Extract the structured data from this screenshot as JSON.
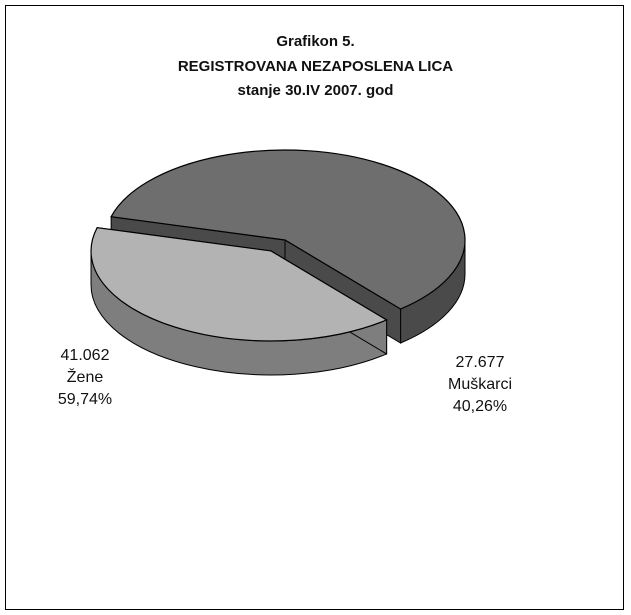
{
  "chart_data": {
    "type": "pie",
    "title": "Grafikon 5.",
    "subtitle": "REGISTROVANA NEZAPOSLENA LICA",
    "subtitle2": "stanje 30.IV 2007. god",
    "slices": [
      {
        "name": "Žene",
        "value": 41062,
        "value_label": "41.062",
        "percent_label": "59,74%",
        "percent": 59.74,
        "color": "#6e6e6e",
        "side_color": "#4a4a4a",
        "exploded": false
      },
      {
        "name": "Muškarci",
        "value": 27677,
        "value_label": "27.677",
        "percent_label": "40,26%",
        "percent": 40.26,
        "color": "#b3b3b3",
        "side_color": "#7e7e7e",
        "exploded": true
      }
    ],
    "style": "3d-exploded",
    "legend": "none"
  }
}
